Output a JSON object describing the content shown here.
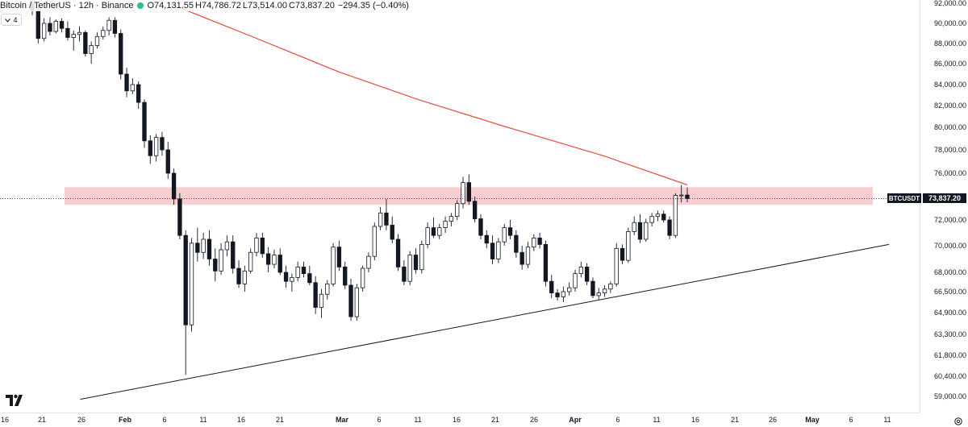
{
  "legend": {
    "title": "Bitcoin / TetherUS · 12h · Binance",
    "open": "O74,131.55",
    "high": "H74,786.72",
    "low": "L73,514.00",
    "close": "C73,837.20",
    "change": "−294.35 (−0.40%)"
  },
  "indicator_toggle": {
    "icon": "chevron-down-icon",
    "count": "4"
  },
  "last_price": {
    "symbol": "BTCUSDT",
    "value": "73,837.20"
  },
  "price_axis": {
    "labels": [
      "92,000.00",
      "90,000.00",
      "88,000.00",
      "86,000.00",
      "84,000.00",
      "82,000.00",
      "80,000.00",
      "78,000.00",
      "76,000.00",
      "72,000.00",
      "70,000.00",
      "68,000.00",
      "66,500.00",
      "64,900.00",
      "63,300.00",
      "61,800.00",
      "60,400.00",
      "59,000.00"
    ]
  },
  "time_axis": {
    "labels": [
      "16",
      "21",
      "26",
      "Feb",
      "6",
      "11",
      "16",
      "21",
      "Mar",
      "6",
      "11",
      "16",
      "21",
      "26",
      "Apr",
      "6",
      "11",
      "16",
      "21",
      "26",
      "May",
      "6",
      "11"
    ],
    "major": [
      "Feb",
      "Mar",
      "Apr",
      "May"
    ]
  },
  "colors": {
    "up_candle": "#ffffff",
    "down_candle": "#131722",
    "moving_average": "#e74c3c",
    "resistance_zone": "#f4a6ab",
    "trendline": "#131722"
  },
  "icons": {
    "logo": "tradingview-logo",
    "settings": "gear-icon"
  },
  "chart_data": {
    "type": "candlestick",
    "symbol": "BTCUSDT",
    "interval": "12h",
    "exchange": "Binance",
    "ylim": [
      58800,
      92100
    ],
    "x_start": "2026-01-16",
    "x_end": "2026-05-11",
    "series": [
      {
        "name": "BTCUSDT",
        "type": "candlestick",
        "values": [
          [
            92000,
            92500,
            90800,
            91300
          ],
          [
            91300,
            91800,
            88000,
            88500
          ],
          [
            88500,
            90500,
            88200,
            90000
          ],
          [
            90000,
            90600,
            88800,
            89200
          ],
          [
            89200,
            90400,
            89000,
            90200
          ],
          [
            90200,
            90500,
            89100,
            89500
          ],
          [
            89500,
            90200,
            88300,
            88600
          ],
          [
            88600,
            89300,
            87300,
            88900
          ],
          [
            88900,
            89700,
            88200,
            89100
          ],
          [
            89100,
            89300,
            86700,
            87000
          ],
          [
            87000,
            88200,
            86000,
            87800
          ],
          [
            87800,
            89100,
            87500,
            88700
          ],
          [
            88700,
            89700,
            88400,
            89300
          ],
          [
            89300,
            90600,
            88800,
            90300
          ],
          [
            90300,
            90600,
            88600,
            89000
          ],
          [
            89000,
            89400,
            84500,
            85000
          ],
          [
            85000,
            85600,
            82800,
            83400
          ],
          [
            83400,
            84600,
            83100,
            84000
          ],
          [
            84000,
            84300,
            81700,
            82300
          ],
          [
            82300,
            82600,
            78200,
            78800
          ],
          [
            78800,
            79300,
            76800,
            77500
          ],
          [
            77500,
            79400,
            77000,
            79100
          ],
          [
            79100,
            79600,
            77500,
            78000
          ],
          [
            78000,
            78700,
            75500,
            76000
          ],
          [
            76000,
            76400,
            73300,
            73800
          ],
          [
            73800,
            74300,
            70500,
            70800
          ],
          [
            70800,
            71200,
            60500,
            64000
          ],
          [
            64000,
            70600,
            63500,
            70200
          ],
          [
            70200,
            71400,
            68800,
            69500
          ],
          [
            69500,
            71000,
            69000,
            70500
          ],
          [
            70500,
            71200,
            68500,
            69000
          ],
          [
            69000,
            69800,
            67300,
            68100
          ],
          [
            68100,
            70200,
            67800,
            69700
          ],
          [
            69700,
            70800,
            69200,
            70300
          ],
          [
            70300,
            70800,
            67900,
            68300
          ],
          [
            68300,
            68900,
            66800,
            67100
          ],
          [
            67100,
            68500,
            66500,
            68100
          ],
          [
            68100,
            69800,
            67900,
            69500
          ],
          [
            69500,
            71000,
            69200,
            70600
          ],
          [
            70600,
            71000,
            69100,
            69400
          ],
          [
            69400,
            69900,
            68000,
            68600
          ],
          [
            68600,
            69700,
            68300,
            69300
          ],
          [
            69300,
            69800,
            67800,
            68000
          ],
          [
            68000,
            68500,
            66800,
            67300
          ],
          [
            67300,
            67900,
            66500,
            67600
          ],
          [
            67600,
            68800,
            67300,
            68400
          ],
          [
            68400,
            68800,
            67600,
            67900
          ],
          [
            67900,
            68500,
            67000,
            67200
          ],
          [
            67200,
            67700,
            64800,
            65300
          ],
          [
            65300,
            66700,
            64500,
            66300
          ],
          [
            66300,
            67400,
            65900,
            67100
          ],
          [
            67100,
            70200,
            66900,
            69900
          ],
          [
            69900,
            70400,
            68100,
            68400
          ],
          [
            68400,
            68800,
            66700,
            67000
          ],
          [
            67000,
            67500,
            64300,
            64600
          ],
          [
            64600,
            67100,
            64300,
            66800
          ],
          [
            66800,
            68500,
            66500,
            68300
          ],
          [
            68300,
            69500,
            68000,
            69200
          ],
          [
            69200,
            71800,
            68900,
            71500
          ],
          [
            71500,
            73100,
            71200,
            72600
          ],
          [
            72600,
            73800,
            71200,
            71600
          ],
          [
            71600,
            72300,
            70200,
            70500
          ],
          [
            70500,
            70900,
            68100,
            68400
          ],
          [
            68400,
            68900,
            67000,
            67300
          ],
          [
            67300,
            69600,
            67000,
            69300
          ],
          [
            69300,
            69800,
            67900,
            68200
          ],
          [
            68200,
            70400,
            67900,
            70100
          ],
          [
            70100,
            71800,
            69800,
            71400
          ],
          [
            71400,
            72200,
            70600,
            70800
          ],
          [
            70800,
            71700,
            70500,
            71400
          ],
          [
            71400,
            72300,
            71000,
            71900
          ],
          [
            71900,
            72600,
            71500,
            72300
          ],
          [
            72300,
            73700,
            72000,
            73400
          ],
          [
            73400,
            75700,
            73000,
            75200
          ],
          [
            75200,
            75900,
            73300,
            73600
          ],
          [
            73600,
            74000,
            71800,
            72100
          ],
          [
            72100,
            72500,
            70500,
            70800
          ],
          [
            70800,
            71200,
            69800,
            70200
          ],
          [
            70200,
            70800,
            68600,
            69000
          ],
          [
            69000,
            70600,
            68700,
            70300
          ],
          [
            70300,
            71700,
            70000,
            71400
          ],
          [
            71400,
            72000,
            70500,
            70800
          ],
          [
            70800,
            71200,
            69100,
            69500
          ],
          [
            69500,
            70000,
            68200,
            68600
          ],
          [
            68600,
            70300,
            68300,
            69900
          ],
          [
            69900,
            70900,
            69600,
            70600
          ],
          [
            70600,
            71000,
            69800,
            70100
          ],
          [
            70100,
            70400,
            66900,
            67300
          ],
          [
            67300,
            67800,
            66000,
            66400
          ],
          [
            66400,
            66700,
            65800,
            66100
          ],
          [
            66100,
            66900,
            65700,
            66500
          ],
          [
            66500,
            67200,
            66200,
            66800
          ],
          [
            66800,
            68200,
            66500,
            67900
          ],
          [
            67900,
            68800,
            67600,
            68400
          ],
          [
            68400,
            68700,
            67000,
            67300
          ],
          [
            67300,
            67600,
            66000,
            66200
          ],
          [
            66200,
            66800,
            65900,
            66400
          ],
          [
            66400,
            67000,
            66100,
            66700
          ],
          [
            66700,
            67300,
            66400,
            67100
          ],
          [
            67100,
            70200,
            66900,
            69800
          ],
          [
            69800,
            70100,
            68600,
            68900
          ],
          [
            68900,
            71400,
            68700,
            71100
          ],
          [
            71100,
            72300,
            70800,
            71800
          ],
          [
            71800,
            72500,
            70200,
            70500
          ],
          [
            70500,
            72100,
            70300,
            71800
          ],
          [
            71800,
            72600,
            71500,
            72300
          ],
          [
            72300,
            72800,
            71900,
            72500
          ],
          [
            72500,
            72800,
            71800,
            72000
          ],
          [
            72000,
            72300,
            70500,
            70800
          ],
          [
            70800,
            74300,
            70600,
            74100
          ],
          [
            74100,
            75000,
            73500,
            74131.55
          ],
          [
            74131.55,
            74786.72,
            73514,
            73837.2
          ]
        ]
      },
      {
        "name": "Moving Average",
        "type": "line",
        "points": [
          [
            "2026-01-16",
            92600
          ],
          [
            "2026-02-01",
            88800
          ],
          [
            "2026-02-16",
            85200
          ],
          [
            "2026-03-01",
            82600
          ],
          [
            "2026-03-16",
            80000
          ],
          [
            "2026-04-01",
            77500
          ],
          [
            "2026-04-15",
            75000
          ]
        ]
      }
    ],
    "zones": [
      {
        "name": "Resistance",
        "from": 73300,
        "to": 74800
      }
    ],
    "trendlines": [
      {
        "start": [
          "2026-01-26",
          58800
        ],
        "end": [
          "2026-05-11",
          70100
        ]
      }
    ]
  }
}
